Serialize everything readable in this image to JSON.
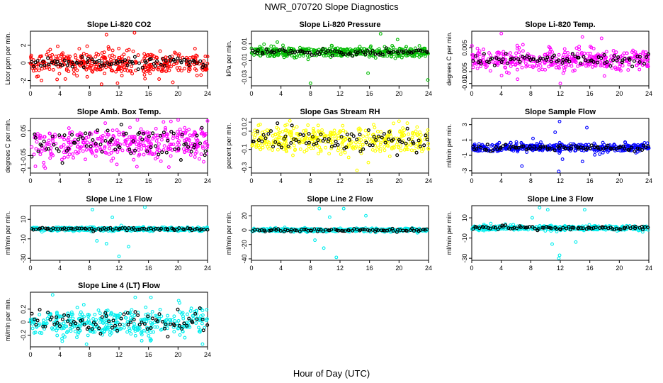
{
  "figure": {
    "title": "NWR_070720  Slope Diagnostics",
    "xlabel": "Hour of Day (UTC)"
  },
  "chart_data": [
    {
      "type": "scatter",
      "title": "Slope Li-820 CO2",
      "ylabel": "Licor ppm per min.",
      "color": "#ff0000",
      "xlim": [
        0,
        24
      ],
      "xticks": [
        0,
        4,
        8,
        12,
        16,
        20,
        24
      ],
      "ylim": [
        -2.6,
        3.6
      ],
      "yticks": [
        -2,
        0,
        2
      ],
      "spread": 0.9,
      "fill_band": 0.6,
      "spikes": [
        {
          "x": 10.3,
          "y": 3.2
        },
        {
          "x": 14.1,
          "y": 3.5
        },
        {
          "x": 1.5,
          "y": -2.0
        },
        {
          "x": 11.8,
          "y": -2.3
        }
      ],
      "black_amp": 0.3,
      "series": [
        {
          "name": "",
          "color": "#ff0000"
        },
        {
          "name": "",
          "color": "#000000"
        }
      ]
    },
    {
      "type": "scatter",
      "title": "Slope Li-820 Pressure",
      "ylabel": "kPa per min.",
      "color": "#00bb00",
      "xlim": [
        0,
        24
      ],
      "xticks": [
        0,
        4,
        8,
        12,
        16,
        20,
        24
      ],
      "ylim": [
        -0.04,
        0.025
      ],
      "yticks": [
        -0.03,
        -0.01,
        0.01
      ],
      "spread": 0.004,
      "fill_band": 0.003,
      "spikes": [
        {
          "x": 8.0,
          "y": -0.037
        },
        {
          "x": 15.8,
          "y": -0.025
        },
        {
          "x": 23.9,
          "y": -0.033
        },
        {
          "x": 17.5,
          "y": 0.022
        },
        {
          "x": 3.5,
          "y": 0.012
        },
        {
          "x": 19.8,
          "y": 0.015
        }
      ],
      "black_amp": 0.002,
      "series": [
        {
          "name": "",
          "color": "#00bb00"
        },
        {
          "name": "",
          "color": "#000000"
        }
      ]
    },
    {
      "type": "scatter",
      "title": "Slope Li-820 Temp.",
      "ylabel": "degrees C per min.",
      "color": "#ff00ff",
      "xlim": [
        0,
        24
      ],
      "xticks": [
        0,
        4,
        8,
        12,
        16,
        20,
        24
      ],
      "ylim": [
        -0.011,
        0.012
      ],
      "yticks": [
        -0.01,
        -0.005,
        0.005
      ],
      "spread": 0.003,
      "fill_band": 0.002,
      "spikes": [
        {
          "x": 4.0,
          "y": 0.011
        },
        {
          "x": 12.0,
          "y": -0.01
        },
        {
          "x": 17.6,
          "y": 0.009
        }
      ],
      "black_amp": 0.0015,
      "series": [
        {
          "name": "",
          "color": "#ff00ff"
        },
        {
          "name": "",
          "color": "#000000"
        }
      ]
    },
    {
      "type": "scatter",
      "title": "Slope Amb. Box Temp.",
      "ylabel": "degrees C per min.",
      "color": "#ff00ff",
      "xlim": [
        0,
        24
      ],
      "xticks": [
        0,
        4,
        8,
        12,
        16,
        20,
        24
      ],
      "ylim": [
        -0.12,
        0.1
      ],
      "yticks": [
        -0.1,
        -0.05,
        0.05
      ],
      "spread": 0.04,
      "fill_band": 0.03,
      "spikes": [
        {
          "x": 24.0,
          "y": 0.09
        },
        {
          "x": 2.0,
          "y": -0.1
        }
      ],
      "black_amp": 0.03,
      "series": [
        {
          "name": "",
          "color": "#ff00ff"
        },
        {
          "name": "",
          "color": "#000000"
        }
      ]
    },
    {
      "type": "scatter",
      "title": "Slope Gas Stream RH",
      "ylabel": "percent per min.",
      "color": "#ffff00",
      "xlim": [
        0,
        24
      ],
      "xticks": [
        0,
        4,
        8,
        12,
        16,
        20,
        24
      ],
      "ylim": [
        -0.36,
        0.24
      ],
      "yticks": [
        -0.3,
        -0.1,
        0.1,
        0.2
      ],
      "spread": 0.09,
      "fill_band": 0.07,
      "spikes": [
        {
          "x": 14.3,
          "y": -0.33
        },
        {
          "x": 20.0,
          "y": 0.21
        }
      ],
      "black_amp": 0.07,
      "series": [
        {
          "name": "",
          "color": "#ffff00"
        },
        {
          "name": "",
          "color": "#000000"
        }
      ]
    },
    {
      "type": "scatter",
      "title": "Slope Sample Flow",
      "ylabel": "ml/min per min.",
      "color": "#0000ff",
      "xlim": [
        0,
        24
      ],
      "xticks": [
        0,
        4,
        8,
        12,
        16,
        20,
        24
      ],
      "ylim": [
        -3.3,
        3.8
      ],
      "yticks": [
        -3,
        -1,
        1,
        3
      ],
      "spread": 0.35,
      "fill_band": 0.25,
      "spikes": [
        {
          "x": 11.9,
          "y": 3.4
        },
        {
          "x": 11.8,
          "y": -3.1
        },
        {
          "x": 15.6,
          "y": 2.6
        },
        {
          "x": 6.8,
          "y": -2.4
        },
        {
          "x": 8.3,
          "y": 1.2
        },
        {
          "x": 15.0,
          "y": -1.8
        },
        {
          "x": 11.3,
          "y": 2.0
        },
        {
          "x": 12.3,
          "y": -1.5
        }
      ],
      "black_amp": 0.2,
      "series": [
        {
          "name": "",
          "color": "#0000ff"
        },
        {
          "name": "",
          "color": "#000000"
        }
      ]
    },
    {
      "type": "scatter",
      "title": "Slope Line 1 Flow",
      "ylabel": "ml/min per min.",
      "color": "#00eeee",
      "xlim": [
        0,
        24
      ],
      "xticks": [
        0,
        4,
        8,
        12,
        16,
        20,
        24
      ],
      "ylim": [
        -32,
        24
      ],
      "yticks": [
        -30,
        -10,
        10
      ],
      "spread": 1.2,
      "fill_band": 1.0,
      "spikes": [
        {
          "x": 8.4,
          "y": 20
        },
        {
          "x": 15.5,
          "y": 23
        },
        {
          "x": 12.0,
          "y": -28
        },
        {
          "x": 13.3,
          "y": -18
        },
        {
          "x": 10.3,
          "y": -15
        },
        {
          "x": 9.0,
          "y": -12
        },
        {
          "x": 11.1,
          "y": 12
        }
      ],
      "black_amp": 0.8,
      "series": [
        {
          "name": "",
          "color": "#00eeee"
        },
        {
          "name": "",
          "color": "#000000"
        }
      ]
    },
    {
      "type": "scatter",
      "title": "Slope Line 2 Flow",
      "ylabel": "ml/min per min.",
      "color": "#00eeee",
      "xlim": [
        0,
        24
      ],
      "xticks": [
        0,
        4,
        8,
        12,
        16,
        20,
        24
      ],
      "ylim": [
        -42,
        34
      ],
      "yticks": [
        -40,
        -20,
        0,
        20
      ],
      "spread": 1.5,
      "fill_band": 1.2,
      "spikes": [
        {
          "x": 11.5,
          "y": -38
        },
        {
          "x": 9.2,
          "y": 30
        },
        {
          "x": 12.5,
          "y": 30
        },
        {
          "x": 9.8,
          "y": -25
        },
        {
          "x": 15.5,
          "y": 20
        },
        {
          "x": 10.6,
          "y": 18
        },
        {
          "x": 8.6,
          "y": -14
        }
      ],
      "black_amp": 1.0,
      "series": [
        {
          "name": "",
          "color": "#00eeee"
        },
        {
          "name": "",
          "color": "#000000"
        }
      ]
    },
    {
      "type": "scatter",
      "title": "Slope Line 3 Flow",
      "ylabel": "ml/min per min.",
      "color": "#00eeee",
      "xlim": [
        0,
        24
      ],
      "xticks": [
        0,
        4,
        8,
        12,
        16,
        20,
        24
      ],
      "ylim": [
        -32,
        22
      ],
      "yticks": [
        -30,
        -10,
        10
      ],
      "spread": 1.4,
      "fill_band": 1.1,
      "spikes": [
        {
          "x": 11.8,
          "y": -30
        },
        {
          "x": 11.9,
          "y": -27
        },
        {
          "x": 9.2,
          "y": 20
        },
        {
          "x": 10.3,
          "y": 18
        },
        {
          "x": 15.3,
          "y": 18
        },
        {
          "x": 8.2,
          "y": 10
        },
        {
          "x": 10.9,
          "y": -16
        },
        {
          "x": 14.1,
          "y": -14
        }
      ],
      "black_amp": 1.0,
      "series": [
        {
          "name": "",
          "color": "#00eeee"
        },
        {
          "name": "",
          "color": "#000000"
        }
      ]
    },
    {
      "type": "scatter",
      "title": "Slope Line 4 (LT) Flow",
      "ylabel": "ml/min per min.",
      "color": "#00eeee",
      "xlim": [
        0,
        24
      ],
      "xticks": [
        0,
        4,
        8,
        12,
        16,
        20,
        24
      ],
      "ylim": [
        -0.38,
        0.46
      ],
      "yticks": [
        -0.2,
        0.0,
        0.2
      ],
      "spread": 0.12,
      "fill_band": 0.1,
      "spikes": [
        {
          "x": 3.0,
          "y": 0.42
        },
        {
          "x": 7.6,
          "y": -0.34
        },
        {
          "x": 14.2,
          "y": 0.38
        }
      ],
      "black_amp": 0.08,
      "series": [
        {
          "name": "",
          "color": "#00eeee"
        },
        {
          "name": "",
          "color": "#000000"
        }
      ]
    }
  ]
}
